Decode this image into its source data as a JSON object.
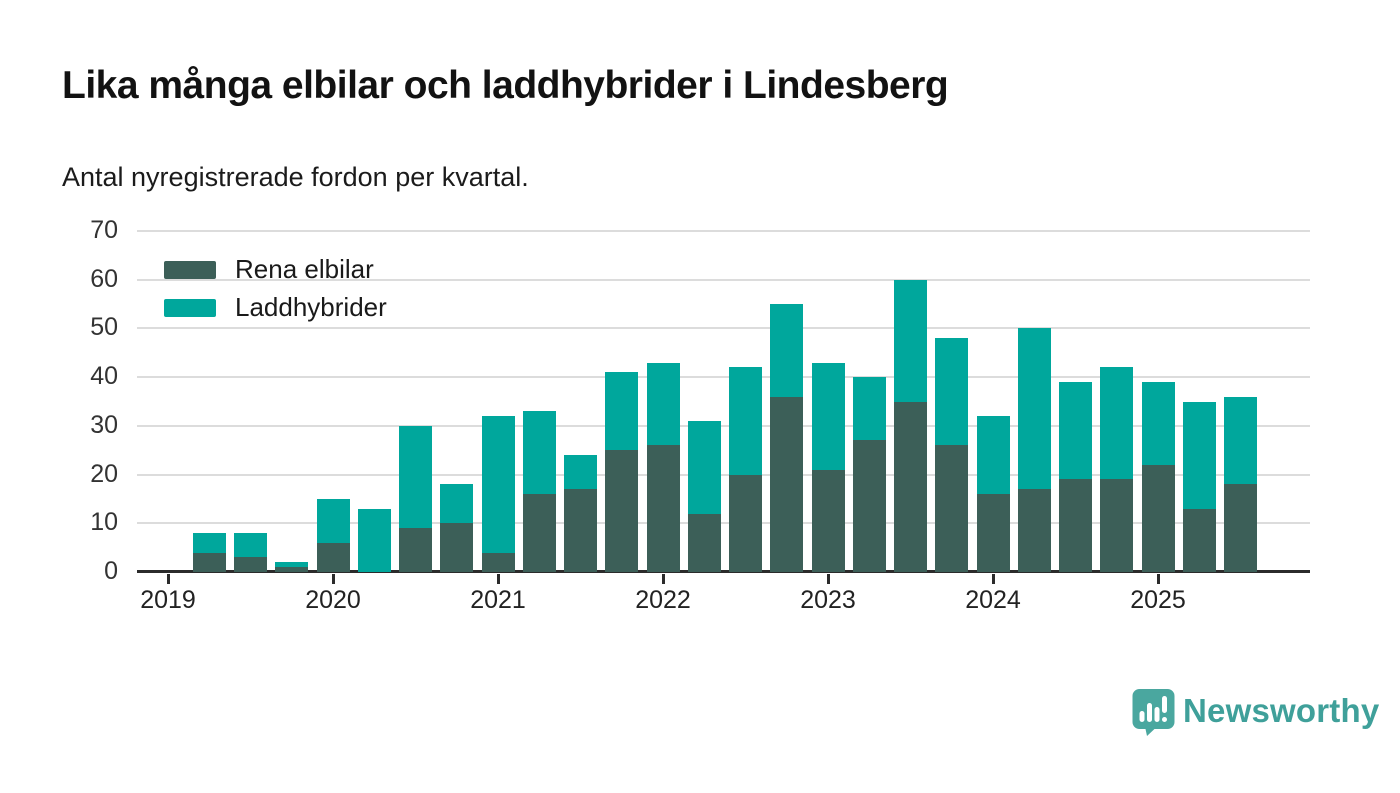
{
  "header": {
    "title": "Lika många elbilar och laddhybrider i Lindesberg",
    "subtitle": "Antal nyregistrerade fordon per kvartal."
  },
  "chart_data": {
    "type": "bar",
    "stacked": true,
    "title": "Lika många elbilar och laddhybrider i Lindesberg",
    "subtitle": "Antal nyregistrerade fordon per kvartal.",
    "categories": [
      "2019 Q2",
      "2019 Q3",
      "2019 Q4",
      "2020 Q1",
      "2020 Q2",
      "2020 Q3",
      "2020 Q4",
      "2021 Q1",
      "2021 Q2",
      "2021 Q3",
      "2021 Q4",
      "2022 Q1",
      "2022 Q2",
      "2022 Q3",
      "2022 Q4",
      "2023 Q1",
      "2023 Q2",
      "2023 Q3",
      "2023 Q4",
      "2024 Q1",
      "2024 Q2",
      "2024 Q3",
      "2024 Q4",
      "2025 Q1",
      "2025 Q2",
      "2025 Q3"
    ],
    "series": [
      {
        "name": "Rena elbilar",
        "color": "#3c5f58",
        "values": [
          4,
          3,
          1,
          6,
          0,
          9,
          10,
          4,
          16,
          17,
          25,
          26,
          12,
          20,
          36,
          21,
          27,
          35,
          26,
          16,
          17,
          19,
          19,
          22,
          13,
          18
        ]
      },
      {
        "name": "Laddhybrider",
        "color": "#00a79c",
        "values": [
          4,
          5,
          1,
          9,
          13,
          21,
          8,
          28,
          17,
          7,
          16,
          17,
          19,
          22,
          19,
          22,
          13,
          25,
          22,
          16,
          33,
          20,
          23,
          17,
          22,
          18
        ]
      }
    ],
    "totals": [
      8,
      8,
      2,
      15,
      13,
      30,
      18,
      32,
      33,
      24,
      41,
      43,
      31,
      42,
      55,
      43,
      40,
      60,
      48,
      32,
      50,
      39,
      42,
      39,
      35,
      36
    ],
    "xlabel": "",
    "ylabel": "",
    "ylim": [
      0,
      70
    ],
    "yticks": [
      0,
      10,
      20,
      30,
      40,
      50,
      60,
      70
    ],
    "xticks": [
      "2019",
      "2020",
      "2021",
      "2022",
      "2023",
      "2024",
      "2025"
    ],
    "grid": "horizontal",
    "legend_position": "top-left"
  },
  "colors": {
    "grid": "#dcdcdc",
    "axis": "#2b2b2b",
    "tick_label": "#333333",
    "title": "#121212",
    "brand_text": "#3fa09a",
    "logo_mark": "#4aa79f"
  },
  "footer": {
    "brand": "Newsworthy"
  }
}
